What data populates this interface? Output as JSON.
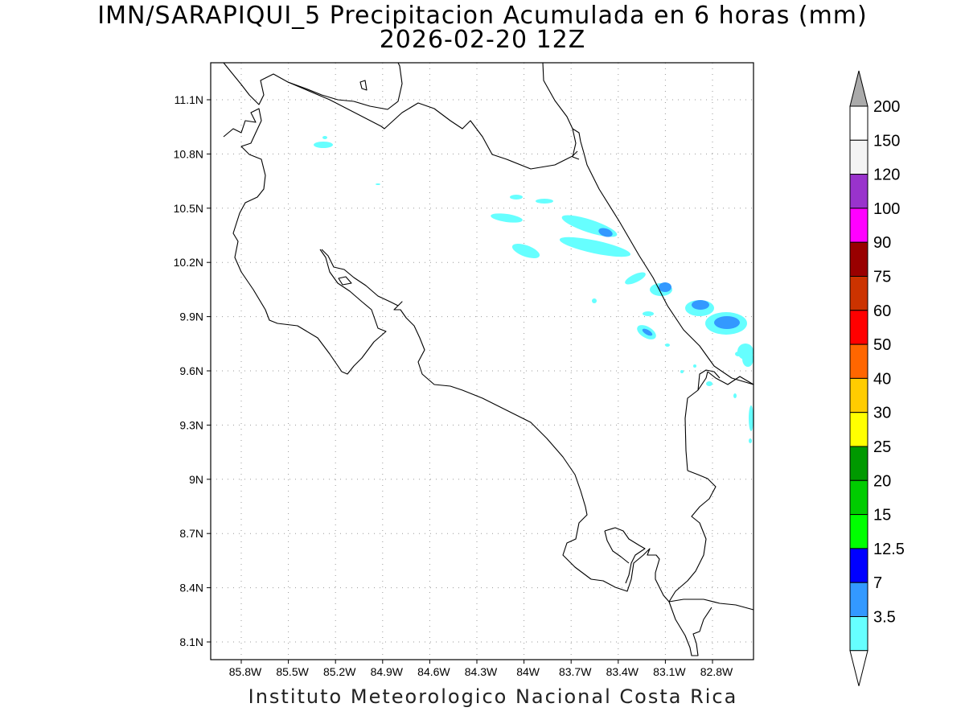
{
  "header": {
    "title_line1": "IMN/SARAPIQUI_5 Precipitacion Acumulada en 6 horas (mm)",
    "title_line2": "2026-02-20 12Z"
  },
  "footer": {
    "text": "Instituto Meteorologico Nacional Costa Rica"
  },
  "map": {
    "lat_labels": [
      "11.1N",
      "10.8N",
      "10.5N",
      "10.2N",
      "9.9N",
      "9.6N",
      "9.3N",
      "9N",
      "8.7N",
      "8.4N",
      "8.1N"
    ],
    "lon_labels": [
      "85.8W",
      "85.5W",
      "85.2W",
      "84.9W",
      "84.6W",
      "84.3W",
      "84W",
      "83.7W",
      "83.4W",
      "83.1W",
      "82.8W"
    ],
    "grid": true,
    "coastline_color": "#000000",
    "rain_colors": {
      "light": "#66ffff",
      "moderate": "#3399ff"
    }
  },
  "legend": {
    "levels": [
      "200",
      "150",
      "120",
      "100",
      "90",
      "75",
      "60",
      "50",
      "40",
      "30",
      "25",
      "20",
      "15",
      "12.5",
      "7",
      "3.5"
    ],
    "colors": [
      "#ffffff",
      "#f4f4f4",
      "#9933cc",
      "#ff00ff",
      "#990000",
      "#cc3300",
      "#ff0000",
      "#ff6600",
      "#ffcc00",
      "#ffff00",
      "#009900",
      "#00cc00",
      "#00ff00",
      "#0000ff",
      "#3399ff",
      "#66ffff"
    ],
    "over_arrow_color": "#aaaaaa",
    "under_arrow_color": "#ffffff"
  }
}
